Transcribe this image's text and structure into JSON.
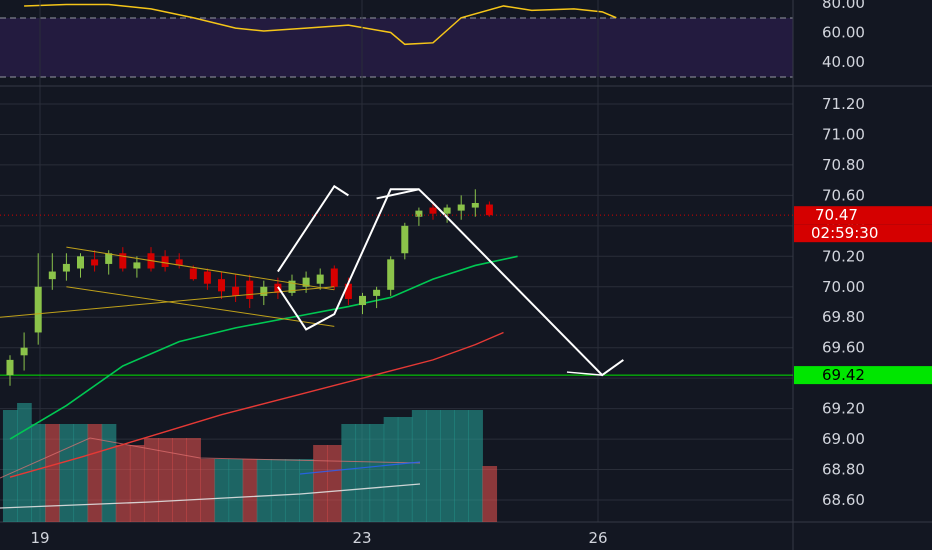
{
  "chart_data": {
    "type": "candlestick",
    "symbol_price_axis": {
      "min": 68.5,
      "max": 71.3,
      "ticks": [
        "71.20",
        "71.00",
        "70.80",
        "70.60",
        "70.40",
        "70.20",
        "70.00",
        "69.80",
        "69.60",
        "69.40",
        "69.20",
        "69.00",
        "68.80",
        "68.60"
      ]
    },
    "rsi_axis": {
      "ticks": [
        "80.00",
        "60.00",
        "40.00"
      ],
      "upper_band": 70,
      "lower_band": 30
    },
    "time_axis": {
      "labels": [
        {
          "text": "19",
          "index": 1
        },
        {
          "text": "23",
          "index": 29
        },
        {
          "text": "26",
          "index": 49
        }
      ]
    },
    "current_price": {
      "value": 70.47,
      "label": "70.47",
      "countdown": "02:59:30",
      "color": "#d50000"
    },
    "horizontal_level": {
      "value": 69.42,
      "label": "69.42",
      "color": "#00e600"
    },
    "candles": [
      {
        "o": 69.42,
        "h": 69.55,
        "l": 69.35,
        "c": 69.52
      },
      {
        "o": 69.55,
        "h": 69.7,
        "l": 69.45,
        "c": 69.6
      },
      {
        "o": 69.7,
        "h": 70.22,
        "l": 69.62,
        "c": 70.0
      },
      {
        "o": 70.05,
        "h": 70.22,
        "l": 69.98,
        "c": 70.1
      },
      {
        "o": 70.1,
        "h": 70.22,
        "l": 70.04,
        "c": 70.15
      },
      {
        "o": 70.12,
        "h": 70.22,
        "l": 70.06,
        "c": 70.2
      },
      {
        "o": 70.18,
        "h": 70.24,
        "l": 70.1,
        "c": 70.14
      },
      {
        "o": 70.15,
        "h": 70.24,
        "l": 70.08,
        "c": 70.22
      },
      {
        "o": 70.22,
        "h": 70.26,
        "l": 70.1,
        "c": 70.12
      },
      {
        "o": 70.12,
        "h": 70.2,
        "l": 70.06,
        "c": 70.16
      },
      {
        "o": 70.22,
        "h": 70.26,
        "l": 70.1,
        "c": 70.12
      },
      {
        "o": 70.2,
        "h": 70.24,
        "l": 70.1,
        "c": 70.13
      },
      {
        "o": 70.18,
        "h": 70.22,
        "l": 70.12,
        "c": 70.14
      },
      {
        "o": 70.12,
        "h": 70.14,
        "l": 70.04,
        "c": 70.05
      },
      {
        "o": 70.1,
        "h": 70.12,
        "l": 69.98,
        "c": 70.02
      },
      {
        "o": 70.05,
        "h": 70.1,
        "l": 69.92,
        "c": 69.97
      },
      {
        "o": 70.0,
        "h": 70.08,
        "l": 69.9,
        "c": 69.94
      },
      {
        "o": 70.04,
        "h": 70.08,
        "l": 69.86,
        "c": 69.92
      },
      {
        "o": 69.94,
        "h": 70.04,
        "l": 69.88,
        "c": 70.0
      },
      {
        "o": 70.02,
        "h": 70.06,
        "l": 69.92,
        "c": 69.96
      },
      {
        "o": 69.96,
        "h": 70.08,
        "l": 69.94,
        "c": 70.04
      },
      {
        "o": 70.0,
        "h": 70.1,
        "l": 69.96,
        "c": 70.06
      },
      {
        "o": 70.02,
        "h": 70.12,
        "l": 69.98,
        "c": 70.08
      },
      {
        "o": 70.12,
        "h": 70.14,
        "l": 69.98,
        "c": 70.0
      },
      {
        "o": 70.02,
        "h": 70.06,
        "l": 69.88,
        "c": 69.92
      },
      {
        "o": 69.88,
        "h": 69.96,
        "l": 69.82,
        "c": 69.94
      },
      {
        "o": 69.94,
        "h": 70.0,
        "l": 69.86,
        "c": 69.98
      },
      {
        "o": 69.98,
        "h": 70.2,
        "l": 69.94,
        "c": 70.18
      },
      {
        "o": 70.22,
        "h": 70.42,
        "l": 70.18,
        "c": 70.4
      },
      {
        "o": 70.46,
        "h": 70.52,
        "l": 70.4,
        "c": 70.5
      },
      {
        "o": 70.52,
        "h": 70.56,
        "l": 70.44,
        "c": 70.48
      },
      {
        "o": 70.48,
        "h": 70.54,
        "l": 70.42,
        "c": 70.52
      },
      {
        "o": 70.5,
        "h": 70.6,
        "l": 70.44,
        "c": 70.54
      },
      {
        "o": 70.52,
        "h": 70.64,
        "l": 70.46,
        "c": 70.55
      },
      {
        "o": 70.54,
        "h": 70.56,
        "l": 70.46,
        "c": 70.47
      }
    ],
    "ma_green": [
      [
        0,
        69.0
      ],
      [
        4,
        69.22
      ],
      [
        8,
        69.48
      ],
      [
        12,
        69.64
      ],
      [
        16,
        69.73
      ],
      [
        20,
        69.8
      ],
      [
        24,
        69.87
      ],
      [
        27,
        69.93
      ],
      [
        30,
        70.05
      ],
      [
        33,
        70.14
      ],
      [
        36,
        70.2
      ]
    ],
    "ma_red": [
      [
        0,
        68.75
      ],
      [
        5,
        68.88
      ],
      [
        10,
        69.02
      ],
      [
        15,
        69.16
      ],
      [
        20,
        69.28
      ],
      [
        25,
        69.4
      ],
      [
        30,
        69.52
      ],
      [
        33,
        69.62
      ],
      [
        35,
        69.7
      ]
    ],
    "volume_bars": [
      {
        "v": 0.8,
        "color": "#26a69a"
      },
      {
        "v": 0.85,
        "color": "#26a69a"
      },
      {
        "v": 0.7,
        "color": "#26a69a"
      },
      {
        "v": 0.7,
        "color": "#ef5350"
      },
      {
        "v": 0.7,
        "color": "#26a69a"
      },
      {
        "v": 0.7,
        "color": "#26a69a"
      },
      {
        "v": 0.7,
        "color": "#ef5350"
      },
      {
        "v": 0.7,
        "color": "#26a69a"
      },
      {
        "v": 0.55,
        "color": "#ef5350"
      },
      {
        "v": 0.55,
        "color": "#ef5350"
      },
      {
        "v": 0.6,
        "color": "#ef5350"
      },
      {
        "v": 0.6,
        "color": "#ef5350"
      },
      {
        "v": 0.6,
        "color": "#ef5350"
      },
      {
        "v": 0.6,
        "color": "#ef5350"
      },
      {
        "v": 0.45,
        "color": "#ef5350"
      },
      {
        "v": 0.45,
        "color": "#26a69a"
      },
      {
        "v": 0.45,
        "color": "#26a69a"
      },
      {
        "v": 0.45,
        "color": "#ef5350"
      },
      {
        "v": 0.45,
        "color": "#26a69a"
      },
      {
        "v": 0.45,
        "color": "#26a69a"
      },
      {
        "v": 0.45,
        "color": "#26a69a"
      },
      {
        "v": 0.45,
        "color": "#26a69a"
      },
      {
        "v": 0.55,
        "color": "#ef5350"
      },
      {
        "v": 0.55,
        "color": "#ef5350"
      },
      {
        "v": 0.7,
        "color": "#26a69a"
      },
      {
        "v": 0.7,
        "color": "#26a69a"
      },
      {
        "v": 0.7,
        "color": "#26a69a"
      },
      {
        "v": 0.75,
        "color": "#26a69a"
      },
      {
        "v": 0.75,
        "color": "#26a69a"
      },
      {
        "v": 0.8,
        "color": "#26a69a"
      },
      {
        "v": 0.8,
        "color": "#26a69a"
      },
      {
        "v": 0.8,
        "color": "#26a69a"
      },
      {
        "v": 0.8,
        "color": "#26a69a"
      },
      {
        "v": 0.8,
        "color": "#26a69a"
      },
      {
        "v": 0.4,
        "color": "#ef5350"
      }
    ],
    "rsi_series": [
      [
        1,
        78
      ],
      [
        4,
        79
      ],
      [
        7,
        79
      ],
      [
        10,
        76
      ],
      [
        13,
        70
      ],
      [
        16,
        63
      ],
      [
        18,
        61
      ],
      [
        21,
        63
      ],
      [
        24,
        65
      ],
      [
        27,
        60
      ],
      [
        28,
        52
      ],
      [
        30,
        53
      ],
      [
        32,
        70
      ],
      [
        35,
        78
      ],
      [
        37,
        75
      ],
      [
        40,
        76
      ],
      [
        42,
        74
      ],
      [
        43,
        70
      ]
    ],
    "colors": {
      "background": "#131722",
      "up_candle": "#8bc34a",
      "down_candle": "#d50000",
      "grid": "#2a2e39",
      "axis_text": "#d1d4dc",
      "rsi_line": "#f5c518",
      "rsi_band_fill": "#2a1e4a",
      "ma_green": "#00c853",
      "ma_red": "#e53935",
      "drawing": "#ffffff",
      "triangle": "#bfa11a"
    }
  }
}
